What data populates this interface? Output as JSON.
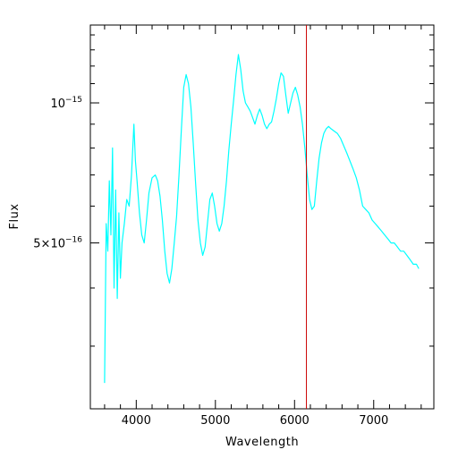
{
  "chart_data": {
    "type": "line",
    "xlabel": "Wavelength",
    "ylabel": "Flux",
    "xlim": [
      3420,
      7760
    ],
    "ylim": [
      2.2e-16,
      1.47e-15
    ],
    "y_scale": "log",
    "grid": false,
    "legend": "none",
    "series_color": "#00FFFF",
    "marker_line": {
      "x": 6150,
      "color": "#CC0000"
    },
    "x_ticks": [
      {
        "value": 4000,
        "label": "4000"
      },
      {
        "value": 5000,
        "label": "5000"
      },
      {
        "value": 6000,
        "label": "6000"
      },
      {
        "value": 7000,
        "label": "7000"
      }
    ],
    "y_ticks": [
      {
        "value": 1e-15,
        "base": "10",
        "exp": "−15"
      },
      {
        "value": 5e-16,
        "base": "5×10",
        "exp": "−16"
      }
    ],
    "series": [
      {
        "values": [
          [
            3600,
            2.5e-16
          ],
          [
            3620,
            5.5e-16
          ],
          [
            3640,
            4.8e-16
          ],
          [
            3660,
            6.8e-16
          ],
          [
            3680,
            5.2e-16
          ],
          [
            3700,
            8e-16
          ],
          [
            3720,
            4e-16
          ],
          [
            3740,
            6.5e-16
          ],
          [
            3760,
            3.8e-16
          ],
          [
            3780,
            5.8e-16
          ],
          [
            3800,
            4.2e-16
          ],
          [
            3820,
            5e-16
          ],
          [
            3850,
            5.5e-16
          ],
          [
            3880,
            6.2e-16
          ],
          [
            3910,
            6e-16
          ],
          [
            3940,
            7e-16
          ],
          [
            3970,
            9e-16
          ],
          [
            3990,
            7.5e-16
          ],
          [
            4010,
            6.8e-16
          ],
          [
            4040,
            5.8e-16
          ],
          [
            4070,
            5.2e-16
          ],
          [
            4100,
            5e-16
          ],
          [
            4130,
            5.6e-16
          ],
          [
            4160,
            6.4e-16
          ],
          [
            4200,
            6.9e-16
          ],
          [
            4240,
            7e-16
          ],
          [
            4270,
            6.8e-16
          ],
          [
            4300,
            6.3e-16
          ],
          [
            4330,
            5.6e-16
          ],
          [
            4360,
            4.8e-16
          ],
          [
            4390,
            4.3e-16
          ],
          [
            4420,
            4.1e-16
          ],
          [
            4450,
            4.4e-16
          ],
          [
            4480,
            5e-16
          ],
          [
            4510,
            5.7e-16
          ],
          [
            4540,
            7e-16
          ],
          [
            4570,
            8.8e-16
          ],
          [
            4600,
            1.08e-15
          ],
          [
            4630,
            1.15e-15
          ],
          [
            4660,
            1.1e-15
          ],
          [
            4690,
            9.8e-16
          ],
          [
            4720,
            8.2e-16
          ],
          [
            4750,
            6.7e-16
          ],
          [
            4780,
            5.6e-16
          ],
          [
            4810,
            5e-16
          ],
          [
            4840,
            4.7e-16
          ],
          [
            4870,
            4.9e-16
          ],
          [
            4900,
            5.5e-16
          ],
          [
            4930,
            6.2e-16
          ],
          [
            4960,
            6.4e-16
          ],
          [
            4990,
            6e-16
          ],
          [
            5020,
            5.5e-16
          ],
          [
            5050,
            5.3e-16
          ],
          [
            5080,
            5.5e-16
          ],
          [
            5110,
            6e-16
          ],
          [
            5140,
            6.8e-16
          ],
          [
            5170,
            7.9e-16
          ],
          [
            5200,
            9e-16
          ],
          [
            5230,
            1.01e-15
          ],
          [
            5260,
            1.15e-15
          ],
          [
            5290,
            1.27e-15
          ],
          [
            5320,
            1.18e-15
          ],
          [
            5350,
            1.06e-15
          ],
          [
            5380,
            1e-15
          ],
          [
            5410,
            9.8e-16
          ],
          [
            5440,
            9.6e-16
          ],
          [
            5470,
            9.3e-16
          ],
          [
            5500,
            9e-16
          ],
          [
            5530,
            9.4e-16
          ],
          [
            5560,
            9.7e-16
          ],
          [
            5590,
            9.4e-16
          ],
          [
            5620,
            9e-16
          ],
          [
            5650,
            8.8e-16
          ],
          [
            5680,
            9e-16
          ],
          [
            5710,
            9.1e-16
          ],
          [
            5740,
            9.6e-16
          ],
          [
            5770,
            1.02e-15
          ],
          [
            5800,
            1.1e-15
          ],
          [
            5830,
            1.16e-15
          ],
          [
            5860,
            1.14e-15
          ],
          [
            5890,
            1.04e-15
          ],
          [
            5920,
            9.5e-16
          ],
          [
            5950,
            1e-15
          ],
          [
            5980,
            1.05e-15
          ],
          [
            6010,
            1.08e-15
          ],
          [
            6040,
            1.04e-15
          ],
          [
            6070,
            9.8e-16
          ],
          [
            6100,
            9e-16
          ],
          [
            6130,
            8e-16
          ],
          [
            6160,
            7e-16
          ],
          [
            6190,
            6.2e-16
          ],
          [
            6220,
            5.9e-16
          ],
          [
            6250,
            6e-16
          ],
          [
            6280,
            6.8e-16
          ],
          [
            6310,
            7.6e-16
          ],
          [
            6340,
            8.2e-16
          ],
          [
            6370,
            8.6e-16
          ],
          [
            6400,
            8.8e-16
          ],
          [
            6430,
            8.9e-16
          ],
          [
            6460,
            8.8e-16
          ],
          [
            6500,
            8.7e-16
          ],
          [
            6540,
            8.6e-16
          ],
          [
            6580,
            8.4e-16
          ],
          [
            6620,
            8.1e-16
          ],
          [
            6660,
            7.8e-16
          ],
          [
            6700,
            7.5e-16
          ],
          [
            6740,
            7.2e-16
          ],
          [
            6780,
            6.9e-16
          ],
          [
            6820,
            6.5e-16
          ],
          [
            6860,
            6e-16
          ],
          [
            6900,
            5.9e-16
          ],
          [
            6940,
            5.8e-16
          ],
          [
            6980,
            5.6e-16
          ],
          [
            7020,
            5.5e-16
          ],
          [
            7060,
            5.4e-16
          ],
          [
            7100,
            5.3e-16
          ],
          [
            7140,
            5.2e-16
          ],
          [
            7180,
            5.1e-16
          ],
          [
            7220,
            5e-16
          ],
          [
            7260,
            5e-16
          ],
          [
            7300,
            4.9e-16
          ],
          [
            7340,
            4.8e-16
          ],
          [
            7380,
            4.8e-16
          ],
          [
            7420,
            4.7e-16
          ],
          [
            7460,
            4.6e-16
          ],
          [
            7500,
            4.5e-16
          ],
          [
            7540,
            4.5e-16
          ],
          [
            7570,
            4.4e-16
          ]
        ]
      }
    ]
  }
}
